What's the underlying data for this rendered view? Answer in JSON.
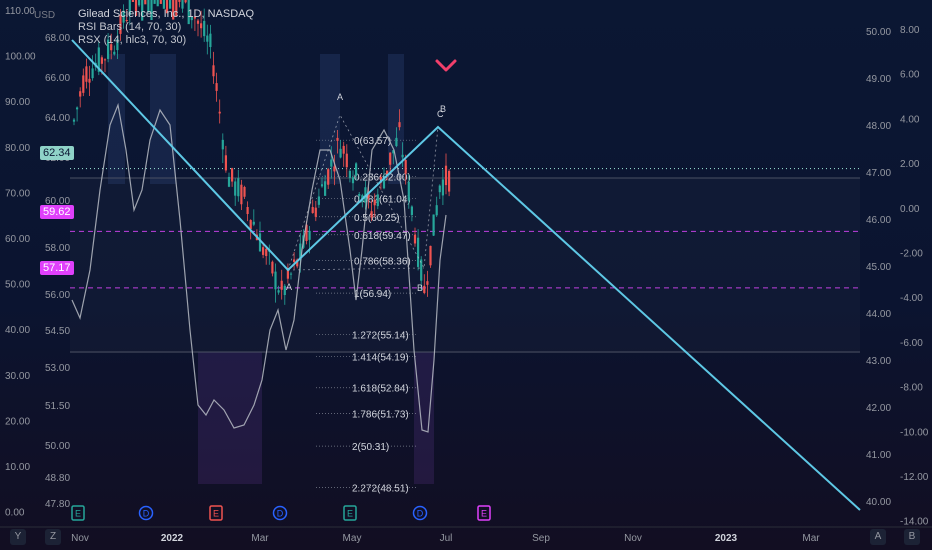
{
  "chart_data": {
    "type": "candlestick",
    "symbol_line": "Gilead Sciences, Inc., 1D, NASDAQ",
    "currency": "USD",
    "indicators": [
      "RSI Bars (14, 70, 30)",
      "RSX (14, hlc3, 70, 30)"
    ],
    "x_ticks": [
      {
        "label": "Nov",
        "bold": false
      },
      {
        "label": "2022",
        "bold": true
      },
      {
        "label": "Mar",
        "bold": false
      },
      {
        "label": "May",
        "bold": false
      },
      {
        "label": "Jul",
        "bold": false
      },
      {
        "label": "Sep",
        "bold": false
      },
      {
        "label": "Nov",
        "bold": false
      },
      {
        "label": "2023",
        "bold": true
      },
      {
        "label": "Mar",
        "bold": false
      }
    ],
    "y_axis_outer_left": [
      "110.00",
      "100.00",
      "90.00",
      "80.00",
      "70.00",
      "60.00",
      "50.00",
      "40.00",
      "30.00",
      "20.00",
      "10.00",
      "0.00"
    ],
    "y_axis_inner_left": [
      "68.00",
      "66.00",
      "64.00",
      "62.00",
      "60.00",
      "58.00",
      "56.00",
      "54.50",
      "53.00",
      "51.50",
      "50.00",
      "48.80",
      "47.80"
    ],
    "y_axis_right_price": [
      "50.00",
      "49.00",
      "48.00",
      "47.00",
      "46.00",
      "45.00",
      "44.00",
      "43.00",
      "42.00",
      "41.00",
      "40.00"
    ],
    "y_axis_right_osc": [
      "8.00",
      "6.00",
      "4.00",
      "2.00",
      "0.00",
      "-2.00",
      "-4.00",
      "-6.00",
      "-8.00",
      "-10.00",
      "-12.00",
      "-14.00"
    ],
    "price_ylim": [
      47.8,
      68.0
    ],
    "price_badges": [
      {
        "label": "62.34",
        "price": 62.34,
        "color": "#8fd3c8",
        "text_color": "#0b1733"
      },
      {
        "label": "59.62",
        "price": 59.62,
        "color": "#e040fb",
        "text_color": "#ffffff"
      },
      {
        "label": "57.17",
        "price": 57.17,
        "color": "#e040fb",
        "text_color": "#ffffff"
      }
    ],
    "fib_levels": [
      {
        "label": "0(63.57)",
        "price": 63.57
      },
      {
        "label": "0.236(62.00)",
        "price": 62.0
      },
      {
        "label": "0.382(61.04)",
        "price": 61.04
      },
      {
        "label": "0.5(60.25)",
        "price": 60.25
      },
      {
        "label": "0.618(59.47)",
        "price": 59.47
      },
      {
        "label": "0.786(58.36)",
        "price": 58.36
      },
      {
        "label": "1(56.94)",
        "price": 56.94
      },
      {
        "label": "1.272(55.14)",
        "price": 55.14
      },
      {
        "label": "1.414(54.19)",
        "price": 54.19
      },
      {
        "label": "1.618(52.84)",
        "price": 52.84
      },
      {
        "label": "1.786(51.73)",
        "price": 51.73
      },
      {
        "label": "2(50.31)",
        "price": 50.31
      },
      {
        "label": "2.272(48.51)",
        "price": 48.51
      }
    ],
    "pattern_labels": [
      "A",
      "A",
      "B",
      "C",
      "B"
    ],
    "event_markers": [
      {
        "label": "E",
        "color": "#26a69a",
        "shape": "square"
      },
      {
        "label": "D",
        "color": "#2962ff",
        "shape": "circle"
      },
      {
        "label": "E",
        "color": "#ef5350",
        "shape": "square"
      },
      {
        "label": "D",
        "color": "#2962ff",
        "shape": "circle"
      },
      {
        "label": "E",
        "color": "#26a69a",
        "shape": "square"
      },
      {
        "label": "D",
        "color": "#2962ff",
        "shape": "circle"
      },
      {
        "label": "E",
        "color": "#e040fb",
        "shape": "square"
      }
    ],
    "colors": {
      "up": "#26a69a",
      "down": "#ef5350",
      "trend": "#5ec8e5",
      "fib": "#9aa0ab",
      "dotted_price": "#8fd3c8",
      "dashed": "#c040e0",
      "sell_arrow": "#f23f6b"
    },
    "corner_labels": {
      "left_a": "Y",
      "left_b": "Z",
      "right_a": "A",
      "right_b": "B"
    }
  }
}
